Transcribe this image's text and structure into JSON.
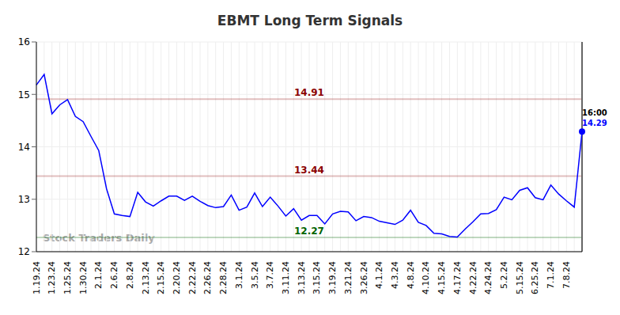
{
  "chart_data": {
    "type": "line",
    "title": "EBMT Long Term Signals",
    "watermark": "Stock Traders Daily",
    "categories": [
      "1.19.24",
      null,
      "1.23.24",
      null,
      "1.25.24",
      null,
      "1.30.24",
      null,
      "2.1.24",
      null,
      "2.6.24",
      null,
      "2.8.24",
      null,
      "2.13.24",
      null,
      "2.15.24",
      null,
      "2.20.24",
      null,
      "2.22.24",
      null,
      "2.26.24",
      null,
      "2.28.24",
      null,
      "3.1.24",
      null,
      "3.5.24",
      null,
      "3.7.24",
      null,
      "3.11.24",
      null,
      "3.13.24",
      null,
      "3.15.24",
      null,
      "3.19.24",
      null,
      "3.21.24",
      null,
      "3.26.24",
      null,
      "4.1.24",
      null,
      "4.3.24",
      null,
      "4.8.24",
      null,
      "4.10.24",
      null,
      "4.15.24",
      null,
      "4.17.24",
      null,
      "4.22.24",
      null,
      "4.24.24",
      null,
      "5.2.24",
      null,
      "5.15.24",
      null,
      "6.25.24",
      null,
      "7.1.24",
      null,
      "7.8.24",
      null,
      null
    ],
    "values": [
      15.18,
      15.38,
      14.63,
      14.8,
      14.9,
      14.58,
      14.48,
      14.2,
      13.93,
      13.2,
      12.72,
      12.69,
      12.67,
      13.13,
      12.95,
      12.87,
      12.97,
      13.06,
      13.06,
      12.98,
      13.06,
      12.96,
      12.88,
      12.84,
      12.86,
      13.08,
      12.79,
      12.85,
      13.12,
      12.86,
      13.04,
      12.87,
      12.68,
      12.82,
      12.6,
      12.69,
      12.69,
      12.53,
      12.72,
      12.77,
      12.76,
      12.59,
      12.67,
      12.65,
      12.58,
      12.55,
      12.52,
      12.6,
      12.79,
      12.56,
      12.5,
      12.35,
      12.34,
      12.29,
      12.28,
      12.43,
      12.57,
      12.72,
      12.73,
      12.8,
      13.04,
      12.99,
      13.17,
      13.22,
      13.03,
      12.99,
      13.27,
      13.1,
      12.97,
      12.85,
      14.29
    ],
    "color": "#0000ff",
    "ylim": [
      12,
      16
    ],
    "yticks": [
      12,
      13,
      14,
      15,
      16
    ],
    "grid": true,
    "annotations": [
      {
        "y": 14.91,
        "label": "14.91",
        "color": "#8b0000"
      },
      {
        "y": 13.44,
        "label": "13.44",
        "color": "#8b0000"
      },
      {
        "y": 12.27,
        "label": "12.27",
        "color": "#006400"
      }
    ],
    "last_point_label": "16:00"
  }
}
